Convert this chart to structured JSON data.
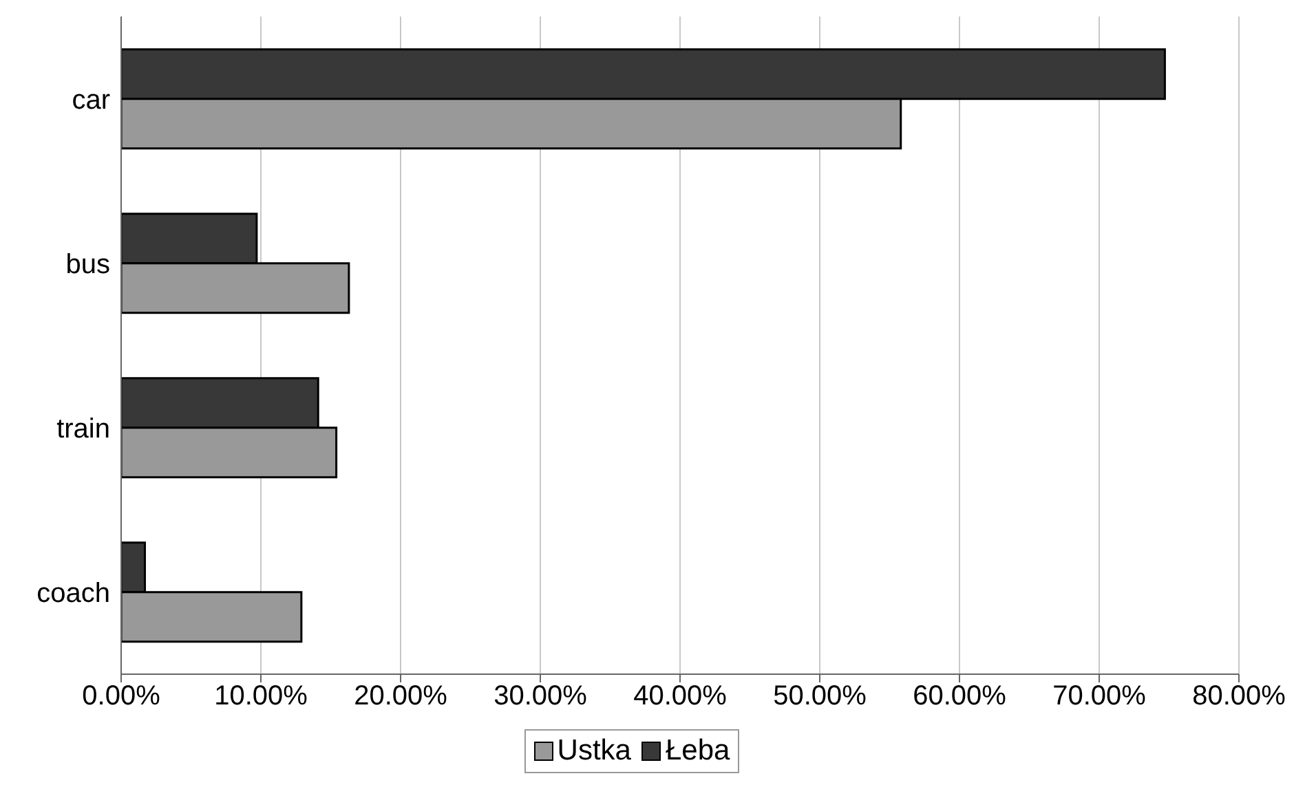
{
  "chart_data": {
    "type": "bar",
    "orientation": "horizontal",
    "categories": [
      "car",
      "bus",
      "train",
      "coach"
    ],
    "series": [
      {
        "name": "Ustka",
        "color": "#999999",
        "values": [
          55.8,
          16.3,
          15.4,
          12.9
        ]
      },
      {
        "name": "Łeba",
        "color": "#383838",
        "values": [
          74.7,
          9.7,
          14.1,
          1.7
        ]
      }
    ],
    "xlim": [
      0,
      80
    ],
    "xticks": [
      {
        "value": 0,
        "label": "0.00%"
      },
      {
        "value": 10,
        "label": "10.00%"
      },
      {
        "value": 20,
        "label": "20.00%"
      },
      {
        "value": 30,
        "label": "30.00%"
      },
      {
        "value": 40,
        "label": "40.00%"
      },
      {
        "value": 50,
        "label": "50.00%"
      },
      {
        "value": 60,
        "label": "60.00%"
      },
      {
        "value": 70,
        "label": "70.00%"
      },
      {
        "value": 80,
        "label": "80.00%"
      }
    ],
    "grid": "x",
    "legend": "bottom"
  }
}
